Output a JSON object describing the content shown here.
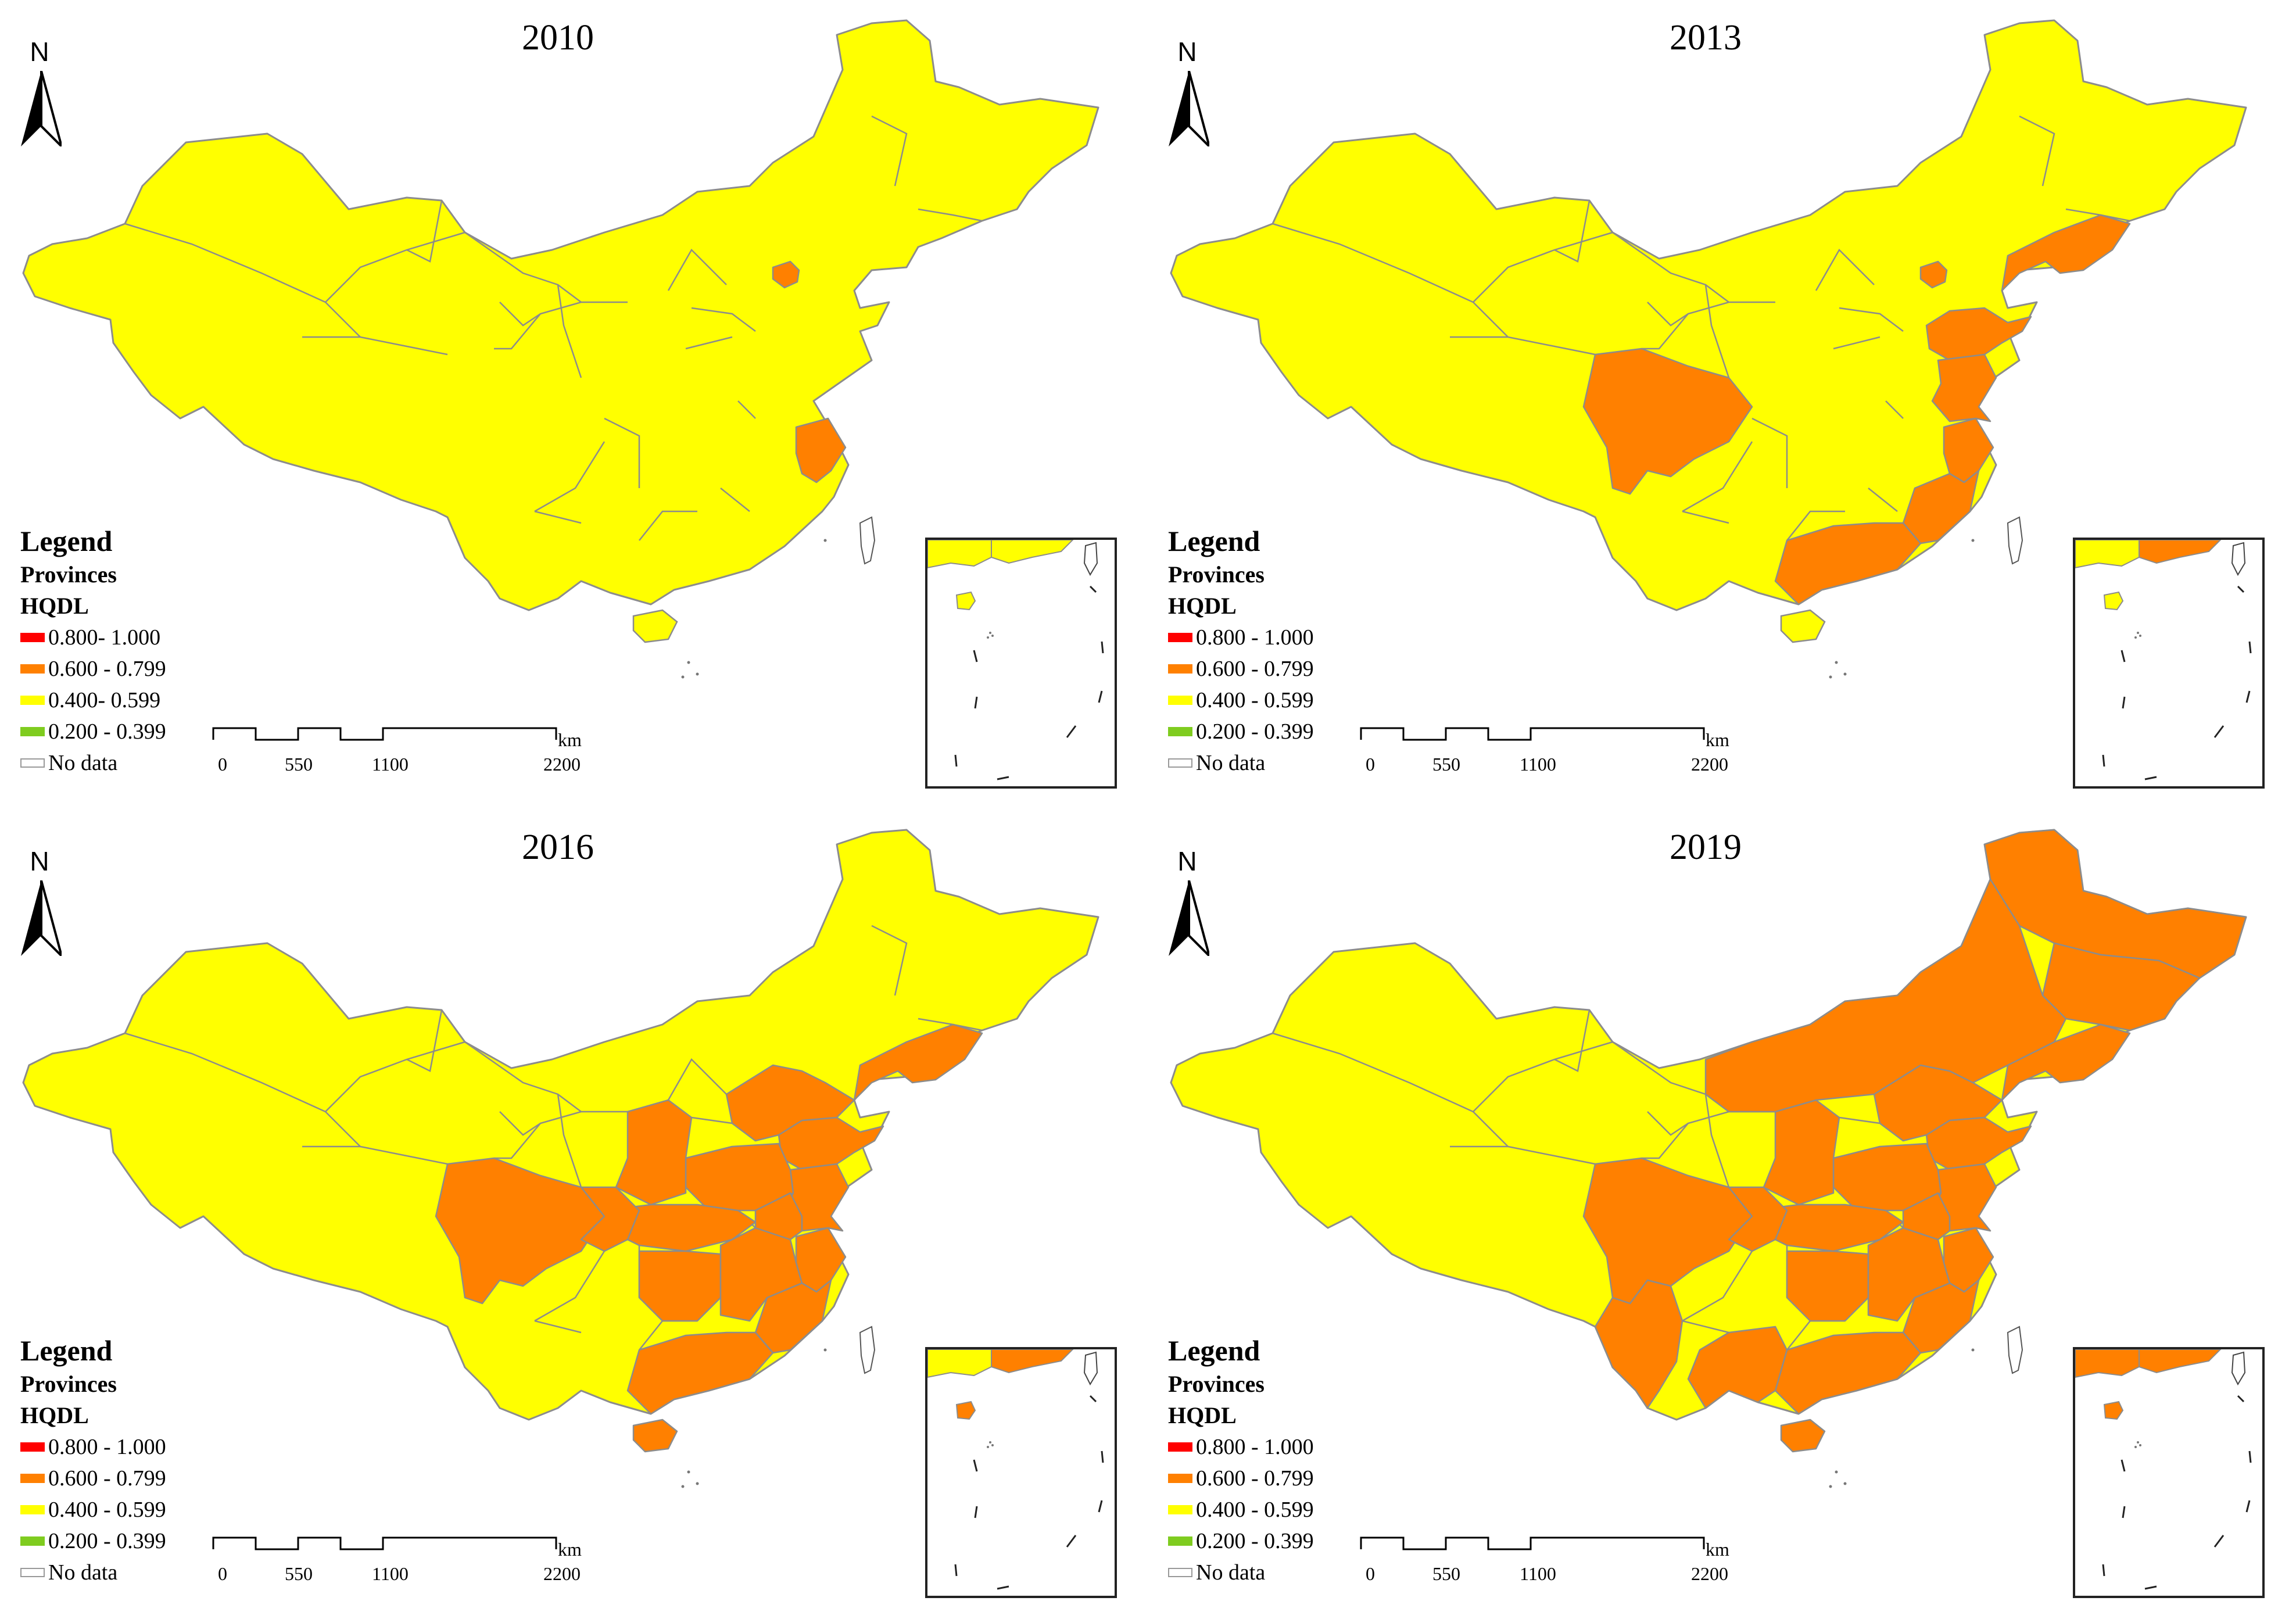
{
  "map_data": {
    "type": "choropleth",
    "region_unit": "Provinces",
    "variable": "HQDL",
    "legend_title": "Legend",
    "legend_layer": "Provinces",
    "legend_field": "HQDL",
    "classes": [
      {
        "label": "0.800- 1.000",
        "color": "#ff0000"
      },
      {
        "label": "0.600 - 0.799",
        "color": "#ff8000"
      },
      {
        "label": "0.400- 0.599",
        "color": "#ffff00"
      },
      {
        "label": "0.200 - 0.399",
        "color": "#7fcc1f"
      },
      {
        "label": "No data",
        "color": "#ffffff"
      }
    ],
    "scale_bar": {
      "ticks": [
        "0",
        "550",
        "1100",
        "2200"
      ],
      "unit": "km"
    },
    "north_arrow_label": "N",
    "panels": [
      {
        "year": "2010",
        "legend_labels": [
          "0.800- 1.000",
          "0.600 - 0.799",
          "0.400- 0.599",
          "0.200 - 0.399",
          "No data"
        ],
        "orange_regions": [
          "beijing",
          "zhejiang"
        ]
      },
      {
        "year": "2013",
        "legend_labels": [
          "0.800 - 1.000",
          "0.600 - 0.799",
          "0.400 - 0.599",
          "0.200 - 0.399",
          "No data"
        ],
        "orange_regions": [
          "beijing",
          "liaoning",
          "shandong",
          "jiangsu",
          "zhejiang",
          "fujian",
          "guangdong",
          "sichuan"
        ]
      },
      {
        "year": "2016",
        "legend_labels": [
          "0.800 - 1.000",
          "0.600 - 0.799",
          "0.400 - 0.599",
          "0.200 - 0.399",
          "No data"
        ],
        "orange_regions": [
          "beijing",
          "liaoning",
          "shandong",
          "jiangsu",
          "zhejiang",
          "fujian",
          "guangdong",
          "sichuan",
          "hebei",
          "henan",
          "hubei",
          "hunan",
          "jiangxi",
          "anhui",
          "chongqing",
          "shaanxi",
          "hainan"
        ]
      },
      {
        "year": "2019",
        "legend_labels": [
          "0.800 - 1.000",
          "0.600 - 0.799",
          "0.400 - 0.599",
          "0.200 - 0.399",
          "No data"
        ],
        "orange_regions": [
          "beijing",
          "liaoning",
          "shandong",
          "jiangsu",
          "zhejiang",
          "fujian",
          "guangdong",
          "sichuan",
          "hebei",
          "henan",
          "hubei",
          "hunan",
          "jiangxi",
          "anhui",
          "chongqing",
          "shaanxi",
          "hainan",
          "heilongjiang",
          "jilin",
          "innermongolia",
          "yunnan",
          "guangxi"
        ]
      }
    ]
  },
  "colors": {
    "orange": "#ff8000",
    "yellow": "#ffff00",
    "border": "#8c8c8c",
    "red": "#ff0000",
    "green": "#7fcc1f"
  }
}
